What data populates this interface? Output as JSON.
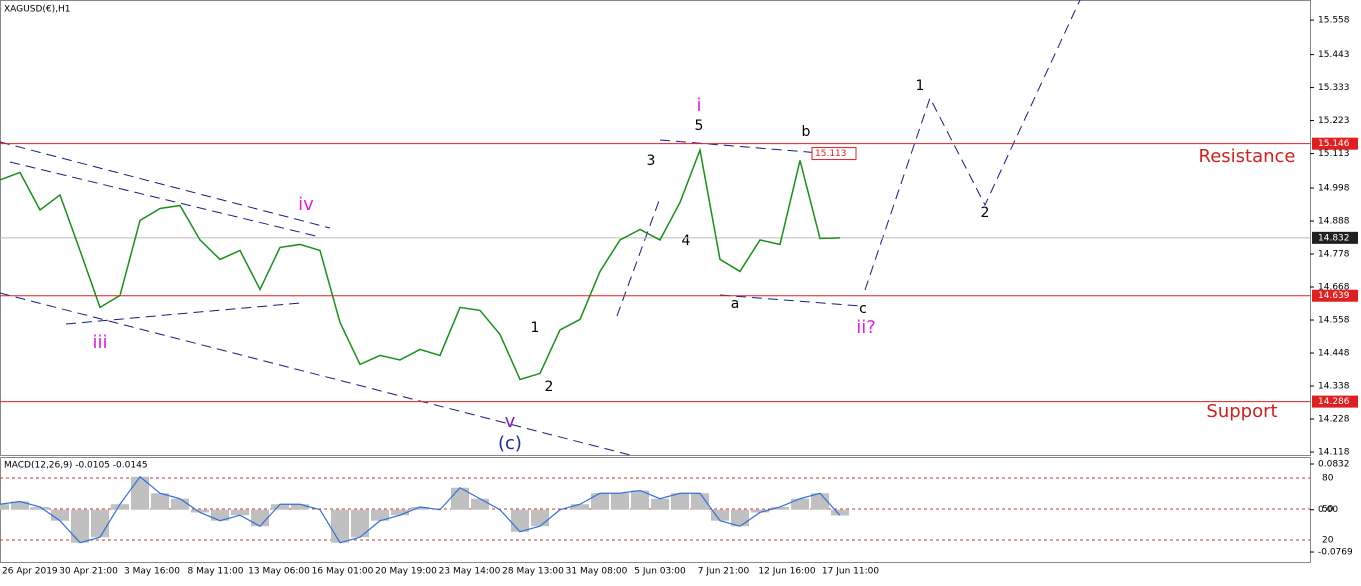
{
  "chart_data": {
    "type": "line",
    "title": "XAGUSD(€),H1",
    "color": "#1a8f1a",
    "values": [
      15.025,
      15.05,
      14.925,
      14.975,
      14.79,
      14.6,
      14.64,
      14.89,
      14.93,
      14.94,
      14.825,
      14.76,
      14.79,
      14.66,
      14.8,
      14.81,
      14.79,
      14.55,
      14.41,
      14.44,
      14.425,
      14.46,
      14.44,
      14.6,
      14.59,
      14.51,
      14.36,
      14.38,
      14.525,
      14.56,
      14.72,
      14.825,
      14.86,
      14.825,
      14.95,
      15.125,
      14.76,
      14.72,
      14.825,
      14.81,
      15.09,
      14.83,
      14.832
    ],
    "ylim": [
      14.108,
      15.625
    ],
    "yticks": [
      15.558,
      15.443,
      15.333,
      15.223,
      15.113,
      14.998,
      14.888,
      14.778,
      14.668,
      14.558,
      14.448,
      14.338,
      14.228,
      14.118
    ],
    "levels": [
      {
        "value": 15.146,
        "color": "#e02020"
      },
      {
        "value": 14.832,
        "color": "#202020"
      },
      {
        "value": 14.639,
        "color": "#e02020"
      },
      {
        "value": 14.286,
        "color": "#e02020"
      }
    ],
    "marked_high": 15.113,
    "x_labels": [
      "26 Apr 2019",
      "30 Apr 21:00",
      "3 May 16:00",
      "8 May 11:00",
      "13 May 06:00",
      "16 May 01:00",
      "20 May 19:00",
      "23 May 14:00",
      "28 May 13:00",
      "31 May 08:00",
      "5 Jun 03:00",
      "7 Jun 21:00",
      "12 Jun 16:00",
      "17 Jun 11:00"
    ],
    "annotations": [
      "i",
      "5",
      "3",
      "4",
      "b",
      "a",
      "c",
      "ii?",
      "1",
      "2",
      "iv",
      "iii",
      "v",
      "(c)",
      "1",
      "2",
      "Resistance",
      "Support"
    ],
    "macd": {
      "title": "MACD(12,26,9) -0.0105 -0.0145",
      "values": [
        0.01,
        0.015,
        0.005,
        -0.02,
        -0.06,
        -0.05,
        0.01,
        0.06,
        0.03,
        0.02,
        -0.005,
        -0.02,
        -0.01,
        -0.03,
        0.01,
        0.01,
        0.0,
        -0.06,
        -0.05,
        -0.02,
        -0.01,
        0.005,
        0.0,
        0.04,
        0.02,
        0.0,
        -0.04,
        -0.03,
        0.0,
        0.01,
        0.03,
        0.03,
        0.035,
        0.02,
        0.03,
        0.03,
        -0.02,
        -0.03,
        -0.005,
        0.005,
        0.02,
        0.03,
        -0.0105
      ],
      "ylim": [
        -0.0769,
        0.0832
      ],
      "yticks": [
        0.0832,
        {
          "value": 0,
          "label": "0.00"
        },
        -0.0769
      ],
      "level_labels": [
        "80",
        "50",
        "20"
      ]
    }
  }
}
